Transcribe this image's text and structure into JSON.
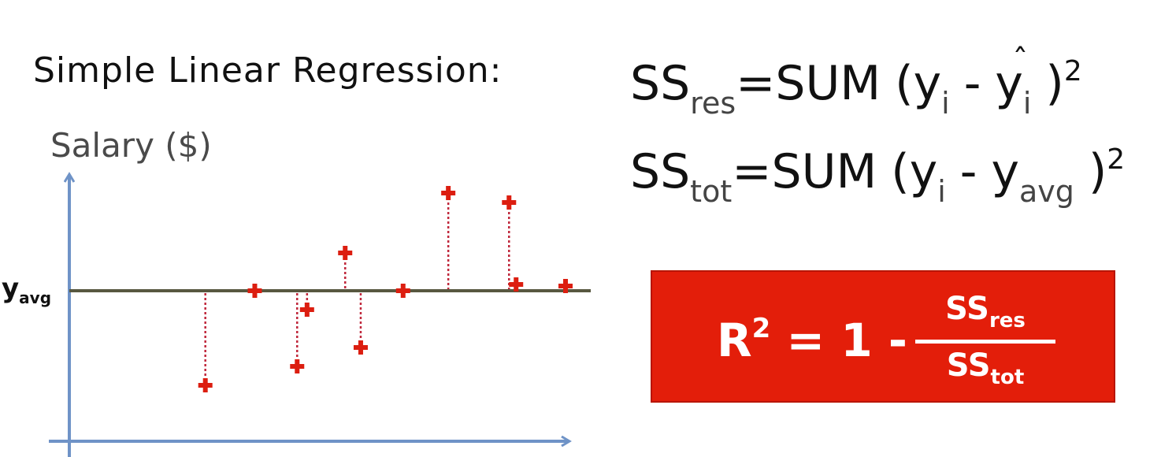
{
  "title": "Simple Linear Regression:",
  "chart_data": {
    "type": "scatter",
    "ylabel": "Salary ($)",
    "xlabel": "",
    "y_avg_label": {
      "main": "y",
      "sub": "avg"
    },
    "y_avg": 0,
    "ylim": [
      -6,
      7
    ],
    "xlim": [
      0,
      30
    ],
    "points": [
      {
        "x": 4.5,
        "y": -3.0,
        "residual_line": true
      },
      {
        "x": 8.0,
        "y": 0.0,
        "residual_line": false
      },
      {
        "x": 11.0,
        "y": -2.4,
        "residual_line": true
      },
      {
        "x": 11.7,
        "y": -0.6,
        "residual_line": true
      },
      {
        "x": 14.4,
        "y": 1.2,
        "residual_line": true
      },
      {
        "x": 15.5,
        "y": -1.8,
        "residual_line": true
      },
      {
        "x": 18.5,
        "y": 0.0,
        "residual_line": false
      },
      {
        "x": 21.7,
        "y": 3.1,
        "residual_line": true
      },
      {
        "x": 26.0,
        "y": 2.8,
        "residual_line": true
      },
      {
        "x": 26.5,
        "y": 0.2,
        "residual_line": false
      },
      {
        "x": 30.0,
        "y": 0.15,
        "residual_line": false
      }
    ],
    "colors": {
      "axis": "#6f93c7",
      "avg_line": "#585840",
      "points": "#dc1e10",
      "residuals": "#c0283c"
    }
  },
  "formulas": {
    "ss_res": {
      "lhs": "SS",
      "lhs_sub": "res",
      "eq": "=",
      "fn": "SUM",
      "open": "(y",
      "i1": "i",
      "minus": "-",
      "y2": "y",
      "hat": "ˆ",
      "i2": "i",
      "close": ")",
      "pow": "2"
    },
    "ss_tot": {
      "lhs": "SS",
      "lhs_sub": "tot",
      "eq": "=",
      "fn": "SUM",
      "open": "(y",
      "i1": "i",
      "minus": "-",
      "y2": "y",
      "avg": "avg",
      "close": ")",
      "pow": "2"
    }
  },
  "r_squared": {
    "lhs": "R",
    "pow": "2",
    "rhs": "= 1 -",
    "num": "SS",
    "num_sub": "res",
    "den": "SS",
    "den_sub": "tot",
    "box_color": "#e31e0a"
  }
}
